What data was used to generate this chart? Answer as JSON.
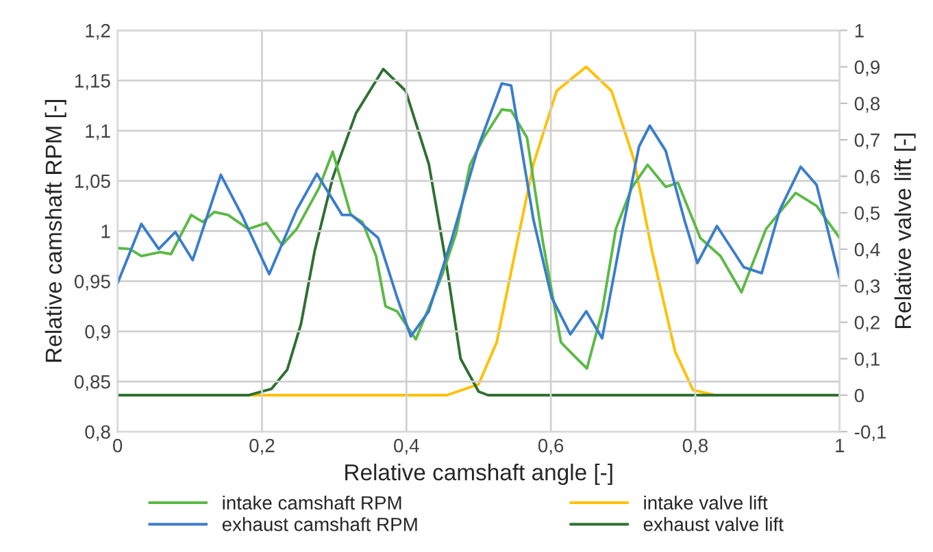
{
  "chart_data": {
    "type": "line",
    "xlabel": "Relative camshaft angle [-]",
    "ylabel": "Relative camshaft RPM [-]",
    "y2label": "Relative valve lift [-]",
    "xlim": [
      0,
      1
    ],
    "xticks": [
      0,
      {
        "value": 0.2,
        "label": "0,2"
      },
      {
        "value": 0.4,
        "label": "0,4"
      },
      {
        "value": 0.6,
        "label": "0,6"
      },
      {
        "value": 0.8,
        "label": "0,8"
      },
      1
    ],
    "ylim": [
      0.8,
      1.2
    ],
    "yticks": [
      {
        "value": 0.8,
        "label": "0,8"
      },
      {
        "value": 0.85,
        "label": "0,85"
      },
      {
        "value": 0.9,
        "label": "0,9"
      },
      {
        "value": 0.95,
        "label": "0,95"
      },
      1,
      {
        "value": 1.05,
        "label": "1,05"
      },
      {
        "value": 1.1,
        "label": "1,1"
      },
      {
        "value": 1.15,
        "label": "1,15"
      },
      {
        "value": 1.2,
        "label": "1,2"
      }
    ],
    "y2lim": [
      -0.1,
      1
    ],
    "y2ticks": [
      {
        "value": -0.1,
        "label": "-0,1"
      },
      0,
      {
        "value": 0.1,
        "label": "0,1"
      },
      {
        "value": 0.2,
        "label": "0,2"
      },
      {
        "value": 0.3,
        "label": "0,3"
      },
      {
        "value": 0.4,
        "label": "0,4"
      },
      {
        "value": 0.5,
        "label": "0,5"
      },
      {
        "value": 0.6,
        "label": "0,6"
      },
      {
        "value": 0.7,
        "label": "0,7"
      },
      {
        "value": 0.8,
        "label": "0,8"
      },
      {
        "value": 0.9,
        "label": "0,9"
      },
      1
    ],
    "grid": true,
    "legend": "bottom",
    "marker": "none",
    "line_style": "solid",
    "series": [
      {
        "name": "intake camshaft RPM",
        "color": "#5cb946",
        "x": [
          0,
          0.017,
          0.033,
          0.059,
          0.074,
          0.102,
          0.118,
          0.134,
          0.153,
          0.181,
          0.206,
          0.228,
          0.248,
          0.279,
          0.298,
          0.323,
          0.339,
          0.358,
          0.371,
          0.387,
          0.413,
          0.45,
          0.469,
          0.488,
          0.507,
          0.532,
          0.545,
          0.567,
          0.589,
          0.614,
          0.633,
          0.65,
          0.671,
          0.69,
          0.712,
          0.734,
          0.759,
          0.776,
          0.807,
          0.835,
          0.864,
          0.898,
          0.939,
          0.968,
          1.0
        ],
        "values": [
          0.983,
          0.982,
          0.975,
          0.979,
          0.977,
          1.016,
          1.009,
          1.019,
          1.016,
          1.002,
          1.008,
          0.986,
          1.002,
          1.043,
          1.079,
          1.016,
          1.009,
          0.975,
          0.925,
          0.92,
          0.892,
          0.957,
          0.998,
          1.066,
          1.093,
          1.121,
          1.12,
          1.093,
          0.989,
          0.889,
          0.875,
          0.863,
          0.92,
          1.002,
          1.043,
          1.066,
          1.044,
          1.048,
          0.993,
          0.975,
          0.939,
          1.002,
          1.038,
          1.025,
          0.993
        ]
      },
      {
        "name": "exhaust camshaft RPM",
        "color": "#3a7dcc",
        "x": [
          0,
          0.033,
          0.057,
          0.08,
          0.104,
          0.143,
          0.172,
          0.21,
          0.248,
          0.276,
          0.311,
          0.324,
          0.361,
          0.387,
          0.406,
          0.431,
          0.462,
          0.5,
          0.532,
          0.545,
          0.576,
          0.601,
          0.627,
          0.649,
          0.671,
          0.696,
          0.722,
          0.737,
          0.759,
          0.785,
          0.803,
          0.83,
          0.867,
          0.892,
          0.917,
          0.946,
          0.968,
          1.0
        ],
        "values": [
          0.948,
          1.007,
          0.982,
          0.999,
          0.971,
          1.056,
          1.016,
          0.957,
          1.021,
          1.057,
          1.016,
          1.016,
          0.993,
          0.934,
          0.895,
          0.92,
          0.99,
          1.085,
          1.147,
          1.145,
          1.011,
          0.934,
          0.897,
          0.92,
          0.893,
          0.989,
          1.084,
          1.105,
          1.08,
          1.011,
          0.968,
          1.005,
          0.964,
          0.958,
          1.021,
          1.064,
          1.046,
          0.953
        ]
      },
      {
        "name": "intake valve lift",
        "color": "#ffc000",
        "axis": "y2",
        "x": [
          0.181,
          0.456,
          0.5,
          0.525,
          0.551,
          0.576,
          0.608,
          0.649,
          0.684,
          0.715,
          0.74,
          0.772,
          0.797,
          0.828
        ],
        "values": [
          0,
          0,
          0.03,
          0.145,
          0.396,
          0.634,
          0.834,
          0.9,
          0.834,
          0.646,
          0.396,
          0.12,
          0.014,
          0
        ]
      },
      {
        "name": "exhaust valve lift",
        "color": "#2e7031",
        "axis": "y2",
        "x": [
          0,
          0.181,
          0.213,
          0.235,
          0.254,
          0.273,
          0.298,
          0.33,
          0.368,
          0.399,
          0.431,
          0.456,
          0.475,
          0.5,
          0.513,
          1.0
        ],
        "values": [
          0,
          0,
          0.017,
          0.07,
          0.195,
          0.396,
          0.596,
          0.772,
          0.894,
          0.834,
          0.634,
          0.35,
          0.1,
          0.01,
          0,
          0
        ]
      }
    ]
  }
}
